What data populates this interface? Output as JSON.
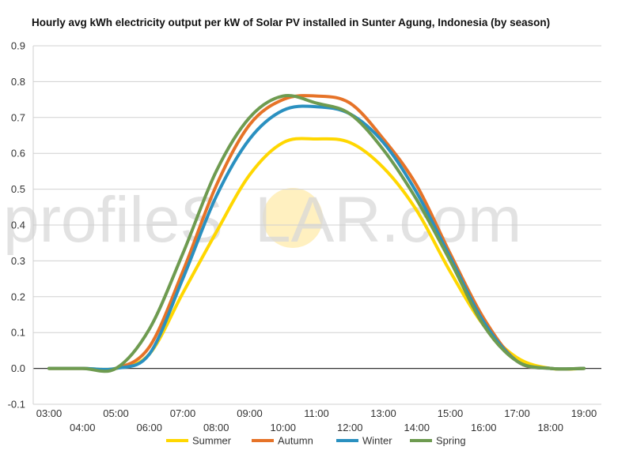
{
  "chart_data": {
    "type": "line",
    "title": "Hourly avg kWh electricity output per kW of Solar PV installed in Sunter Agung, Indonesia (by season)",
    "xlabel": "",
    "ylabel": "",
    "x": [
      "03:00",
      "04:00",
      "05:00",
      "06:00",
      "07:00",
      "08:00",
      "09:00",
      "10:00",
      "11:00",
      "12:00",
      "13:00",
      "14:00",
      "15:00",
      "16:00",
      "17:00",
      "18:00",
      "19:00"
    ],
    "ylim": [
      -0.1,
      0.9
    ],
    "yticks": [
      "-0.1",
      "0.0",
      "0.1",
      "0.2",
      "0.3",
      "0.4",
      "0.5",
      "0.6",
      "0.7",
      "0.8",
      "0.9"
    ],
    "grid": true,
    "legend": "bottom",
    "series": [
      {
        "name": "Summer",
        "color": "#FFD700",
        "values": [
          0,
          0,
          0,
          0.04,
          0.21,
          0.38,
          0.54,
          0.63,
          0.64,
          0.63,
          0.56,
          0.44,
          0.27,
          0.12,
          0.03,
          0,
          0
        ]
      },
      {
        "name": "Autumn",
        "color": "#E67328",
        "values": [
          0,
          0,
          0,
          0.06,
          0.27,
          0.51,
          0.68,
          0.75,
          0.76,
          0.74,
          0.64,
          0.51,
          0.32,
          0.14,
          0.02,
          0,
          0
        ]
      },
      {
        "name": "Winter",
        "color": "#2A90C0",
        "values": [
          0,
          0,
          0,
          0.04,
          0.25,
          0.48,
          0.64,
          0.72,
          0.73,
          0.71,
          0.63,
          0.49,
          0.31,
          0.13,
          0.02,
          0,
          0
        ]
      },
      {
        "name": "Spring",
        "color": "#6E9B50",
        "values": [
          0,
          0,
          0,
          0.11,
          0.32,
          0.55,
          0.7,
          0.76,
          0.74,
          0.71,
          0.61,
          0.47,
          0.3,
          0.12,
          0.02,
          0,
          0
        ]
      }
    ]
  },
  "watermark": {
    "left": "profile",
    "s": "S",
    "right": "LAR.com",
    "sun_color": "#FFF0C0"
  }
}
